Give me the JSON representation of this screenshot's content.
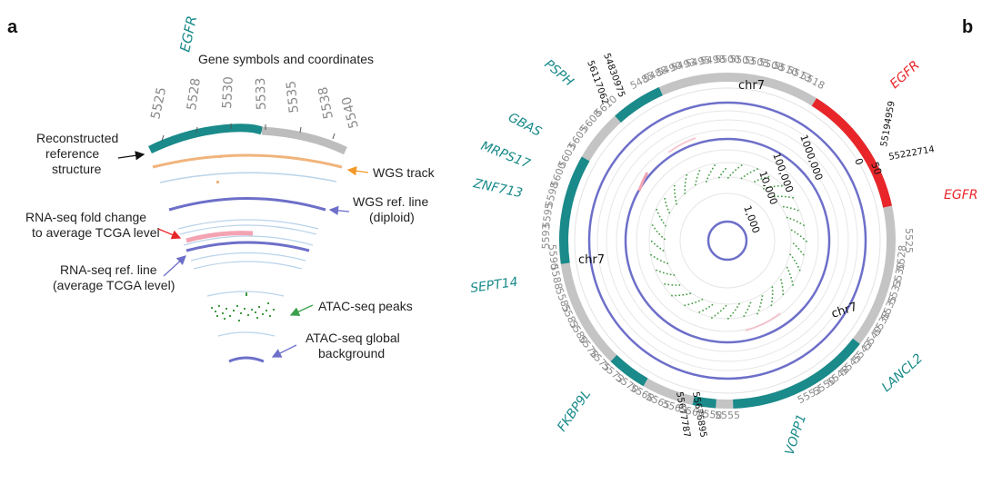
{
  "colors": {
    "teal": "#1a8a8a",
    "grey": "#bdbdbd",
    "red": "#e8262a",
    "blue": "#6d6fc9",
    "lightblue": "#b9d3ea",
    "orange": "#f0b47c",
    "pink": "#f3a3b2",
    "green": "#3f9a3f",
    "arrow_black": "#111111",
    "arrow_orange": "#f39a2b",
    "arrow_blue": "#6d6fc9",
    "arrow_red": "#e8262a",
    "arrow_green": "#3aa04a"
  },
  "panel_a": {
    "panel_label": "a",
    "title": "Gene symbols and coordinates",
    "gene": "EGFR",
    "ticks": [
      "5525",
      "5528",
      "5530",
      "5533",
      "5535",
      "5538",
      "5540"
    ],
    "labels": {
      "reconstructed_1": "Reconstructed",
      "reconstructed_2": "reference",
      "reconstructed_3": "structure",
      "wgs_track": "WGS track",
      "wgs_ref_1": "WGS ref. line",
      "wgs_ref_2": "(diploid)",
      "rna_fold_1": "RNA-seq fold change",
      "rna_fold_2": "to average TCGA level",
      "rna_ref_1": "RNA-seq ref. line",
      "rna_ref_2": "(average TCGA level)",
      "atac_peaks": "ATAC-seq peaks",
      "atac_bg_1": "ATAC-seq global",
      "atac_bg_2": "background"
    }
  },
  "panel_b": {
    "panel_label": "b",
    "genes": [
      {
        "name": "PSPH",
        "color": "teal"
      },
      {
        "name": "GBAS",
        "color": "teal"
      },
      {
        "name": "MRPS17",
        "color": "teal"
      },
      {
        "name": "ZNF713",
        "color": "teal"
      },
      {
        "name": "SEPT14",
        "color": "teal"
      },
      {
        "name": "FKBP9L",
        "color": "teal"
      },
      {
        "name": "VOPP1",
        "color": "teal"
      },
      {
        "name": "LANCL2",
        "color": "teal"
      },
      {
        "name": "EGFR",
        "color": "red"
      },
      {
        "name": "EGFR",
        "color": "red"
      }
    ],
    "ticks_top": [
      "5485",
      "5488",
      "5490",
      "5493",
      "5495",
      "5498",
      "5500",
      "5503",
      "5505",
      "5508",
      "5510",
      "5513",
      "5518"
    ],
    "ticks_right": [
      "5525",
      "5528",
      "5530",
      "5533",
      "5535",
      "5538",
      "5540",
      "5543",
      "5545",
      "5548",
      "5550",
      "5553"
    ],
    "ticks_bottom": [
      "5555",
      "5558",
      "5560",
      "5563",
      "5565",
      "5568",
      "5570",
      "5573",
      "5575",
      "5578",
      "5580",
      "5583",
      "5585"
    ],
    "ticks_left": [
      "5588",
      "5590",
      "5593",
      "5595",
      "5598",
      "5600",
      "5603",
      "5605",
      "5608",
      "5610"
    ],
    "coordinates": [
      "54830975",
      "56117062",
      "55194959",
      "55222714",
      "55677787",
      "55676895"
    ],
    "chrom": "chr7",
    "scale_labels": [
      "1,000",
      "10,000",
      "100,000",
      "1000,000"
    ],
    "scale_zero": "0",
    "scale_fifty": "50"
  }
}
